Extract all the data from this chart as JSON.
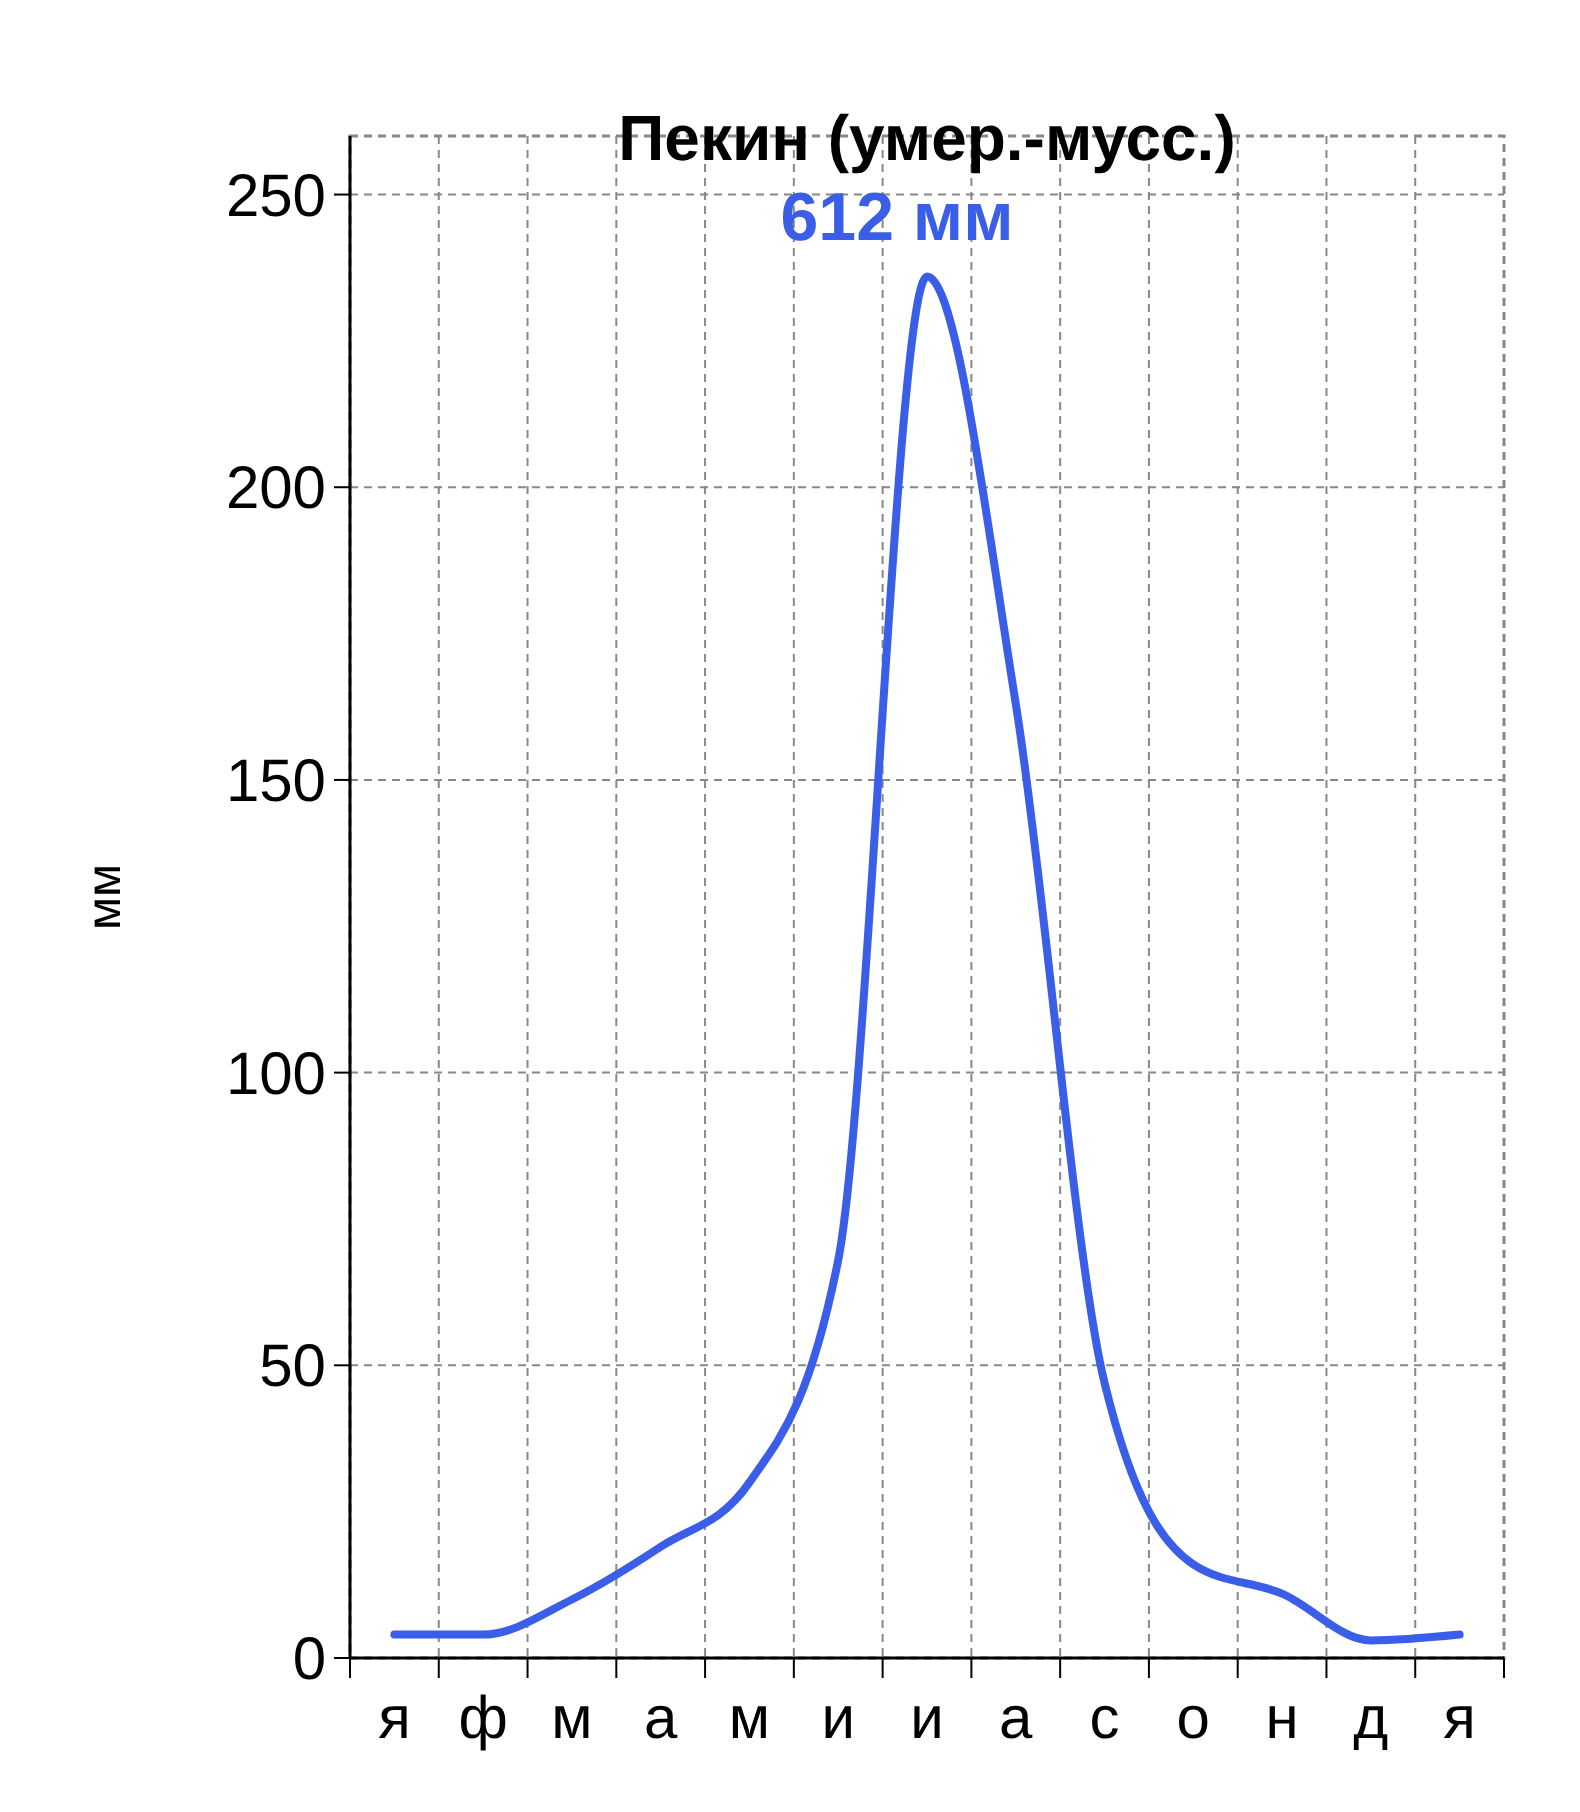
{
  "chart_data": {
    "type": "line",
    "title": "Пекин (умер.-мусс.)",
    "ylabel": "мм",
    "categories": [
      "я",
      "ф",
      "м",
      "а",
      "м",
      "и",
      "и",
      "а",
      "с",
      "о",
      "н",
      "д",
      "я"
    ],
    "series": [
      {
        "color": "#3a5ee8",
        "values": [
          4,
          4,
          10,
          19,
          30,
          68,
          236,
          163,
          47,
          16,
          11,
          3,
          4
        ]
      }
    ],
    "ylim": [
      0,
      260
    ],
    "yticks": [
      0,
      50,
      100,
      150,
      200,
      250
    ],
    "grid": true,
    "marker": "none",
    "line_style": "solid",
    "annotations": [
      "612 мм"
    ]
  }
}
